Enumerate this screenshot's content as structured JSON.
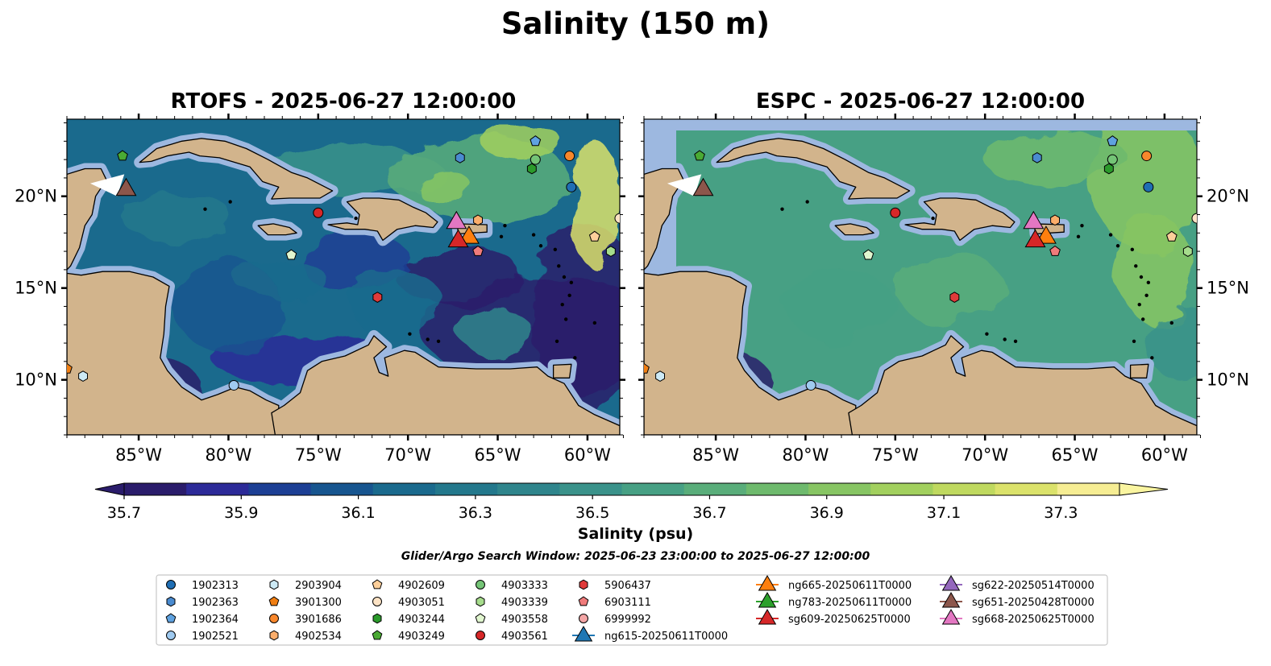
{
  "suptitle": "Salinity (150 m)",
  "panels": [
    {
      "title": "RTOFS - 2025-06-27 12:00:00",
      "model": "RTOFS"
    },
    {
      "title": "ESPC - 2025-06-27 12:00:00",
      "model": "ESPC"
    }
  ],
  "colorbar": {
    "label": "Salinity (psu)",
    "ticks": [
      "35.7",
      "35.9",
      "36.1",
      "36.3",
      "36.5",
      "36.7",
      "36.9",
      "37.1",
      "37.3"
    ],
    "range": [
      35.7,
      37.4
    ],
    "extend": "both",
    "colormap": "haline",
    "colors": [
      "#2a1c6b",
      "#2c2a98",
      "#1c3f94",
      "#17558f",
      "#1a6a8d",
      "#23788c",
      "#2f858c",
      "#3a928a",
      "#47a084",
      "#59ad7a",
      "#6eba6d",
      "#87c563",
      "#a2d05e",
      "#bfd95f",
      "#dbe26b",
      "#f6ed93"
    ]
  },
  "search_window": "Glider/Argo Search Window: 2025-06-23 23:00:00 to 2025-06-27 12:00:00",
  "chart_data": {
    "type": "heatmap",
    "variable": "Salinity",
    "depth": "150 m",
    "units": "psu",
    "x_ticks": [
      "85°W",
      "80°W",
      "75°W",
      "70°W",
      "65°W",
      "60°W"
    ],
    "x_tick_values": [
      -85,
      -80,
      -75,
      -70,
      -65,
      -60
    ],
    "y_ticks": [
      "20°N",
      "15°N",
      "10°N"
    ],
    "y_tick_values": [
      20,
      15,
      10
    ],
    "xlim": [
      -89,
      -58.2
    ],
    "ylim": [
      7,
      24.2
    ],
    "panels": [
      "RTOFS - 2025-06-27 12:00:00",
      "ESPC - 2025-06-27 12:00:00"
    ],
    "argo_floats": [
      {
        "id": "1902313",
        "lon": -60.9,
        "lat": 20.5,
        "marker": "circle",
        "color": "#1f6eb4"
      },
      {
        "id": "1902363",
        "lon": -67.1,
        "lat": 22.1,
        "marker": "hexagon",
        "color": "#4a8bd0"
      },
      {
        "id": "1902364",
        "lon": -62.9,
        "lat": 23.0,
        "marker": "pentagon",
        "color": "#5fa2e0"
      },
      {
        "id": "1902521",
        "lon": -79.7,
        "lat": 9.7,
        "marker": "circle",
        "color": "#9fcaf0"
      },
      {
        "id": "2903904",
        "lon": -88.1,
        "lat": 10.2,
        "marker": "hexagon",
        "color": "#cdeaf6"
      },
      {
        "id": "3901300",
        "lon": -89.0,
        "lat": 10.6,
        "marker": "pentagon",
        "color": "#f07e12"
      },
      {
        "id": "3901686",
        "lon": -61.0,
        "lat": 22.2,
        "marker": "circle",
        "color": "#f8872c"
      },
      {
        "id": "4902534",
        "lon": -66.1,
        "lat": 18.7,
        "marker": "hexagon",
        "color": "#fcae6b"
      },
      {
        "id": "4902609",
        "lon": -59.6,
        "lat": 17.8,
        "marker": "pentagon",
        "color": "#fdcf9a"
      },
      {
        "id": "4903051",
        "lon": -58.2,
        "lat": 18.8,
        "marker": "circle",
        "color": "#fde3c5"
      },
      {
        "id": "4903244",
        "lon": -63.1,
        "lat": 21.5,
        "marker": "hexagon",
        "color": "#2b9a2b"
      },
      {
        "id": "4903249",
        "lon": -85.9,
        "lat": 22.2,
        "marker": "pentagon",
        "color": "#4aaa34"
      },
      {
        "id": "4903333",
        "lon": -62.9,
        "lat": 22.0,
        "marker": "circle",
        "color": "#74c476"
      },
      {
        "id": "4903339",
        "lon": -58.7,
        "lat": 17.0,
        "marker": "hexagon",
        "color": "#a6dc8c"
      },
      {
        "id": "4903558",
        "lon": -76.5,
        "lat": 16.8,
        "marker": "pentagon",
        "color": "#e1f6cf"
      },
      {
        "id": "4903561",
        "lon": -75.0,
        "lat": 19.1,
        "marker": "circle",
        "color": "#d62728"
      },
      {
        "id": "5906437",
        "lon": -71.7,
        "lat": 14.5,
        "marker": "hexagon",
        "color": "#e03a3a"
      },
      {
        "id": "6903111",
        "lon": -66.1,
        "lat": 17.0,
        "marker": "pentagon",
        "color": "#f07b7b"
      },
      {
        "id": "6999992",
        "lon": null,
        "lat": null,
        "marker": "circle",
        "color": "#f4a6a6"
      }
    ],
    "gliders": [
      {
        "id": "ng615-20250611T0000",
        "lon": null,
        "lat": null,
        "color": "#1f77b4"
      },
      {
        "id": "ng665-20250611T0000",
        "lon": -66.6,
        "lat": 17.9,
        "color": "#ff7f0e"
      },
      {
        "id": "ng783-20250611T0000",
        "lon": null,
        "lat": null,
        "color": "#2ca02c"
      },
      {
        "id": "sg609-20250625T0000",
        "lon": -67.2,
        "lat": 17.7,
        "color": "#d62728"
      },
      {
        "id": "sg622-20250514T0000",
        "lon": null,
        "lat": null,
        "color": "#9467bd"
      },
      {
        "id": "sg651-20250428T0000",
        "lon": -85.7,
        "lat": 20.5,
        "color": "#8c564b"
      },
      {
        "id": "sg668-20250625T0000",
        "lon": -67.3,
        "lat": 18.7,
        "color": "#e377c2"
      }
    ]
  },
  "legend": {
    "argo": [
      "1902313",
      "1902363",
      "1902364",
      "1902521",
      "2903904",
      "3901300",
      "3901686",
      "4902534",
      "4902609",
      "4903051",
      "4903244",
      "4903249",
      "4903333",
      "4903339",
      "4903558",
      "4903561",
      "5906437",
      "6903111",
      "6999992"
    ],
    "gliders": [
      "ng615-20250611T0000",
      "ng665-20250611T0000",
      "ng783-20250611T0000",
      "sg609-20250625T0000",
      "sg622-20250514T0000",
      "sg651-20250428T0000",
      "sg668-20250625T0000"
    ]
  }
}
